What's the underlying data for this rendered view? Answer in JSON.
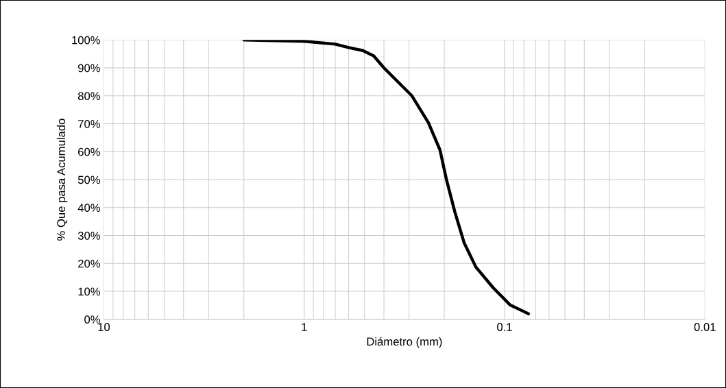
{
  "chart_data": {
    "type": "line",
    "xlabel": "Diámetro (mm)",
    "ylabel": "% Que pasa Acumulado",
    "series": [
      {
        "color": "#000000",
        "x": [
          2.0,
          1.0,
          0.7,
          0.6,
          0.51,
          0.45,
          0.4,
          0.29,
          0.24,
          0.21,
          0.195,
          0.177,
          0.159,
          0.139,
          0.114,
          0.094,
          0.076
        ],
        "values": [
          100,
          99.5,
          98.5,
          97.3,
          96.2,
          94.3,
          90,
          80,
          70.4,
          60.6,
          50,
          38.4,
          27.3,
          18.7,
          11.3,
          5.2,
          2
        ]
      }
    ],
    "log": "x",
    "xlim": [
      10,
      0.01
    ],
    "xticks": [
      10,
      1,
      0.1,
      0.01
    ],
    "ylim": [
      0,
      100
    ],
    "yticks": [
      {
        "value": 0,
        "label": "0%"
      },
      {
        "value": 10,
        "label": "10%"
      },
      {
        "value": 20,
        "label": "20%"
      },
      {
        "value": 30,
        "label": "30%"
      },
      {
        "value": 40,
        "label": "40%"
      },
      {
        "value": 50,
        "label": "50%"
      },
      {
        "value": 60,
        "label": "60%"
      },
      {
        "value": 70,
        "label": "70%"
      },
      {
        "value": 80,
        "label": "80%"
      },
      {
        "value": 90,
        "label": "90%"
      },
      {
        "value": 100,
        "label": "100%"
      }
    ],
    "grid": true,
    "marker": "none",
    "line_style": "solid",
    "legend": false
  }
}
